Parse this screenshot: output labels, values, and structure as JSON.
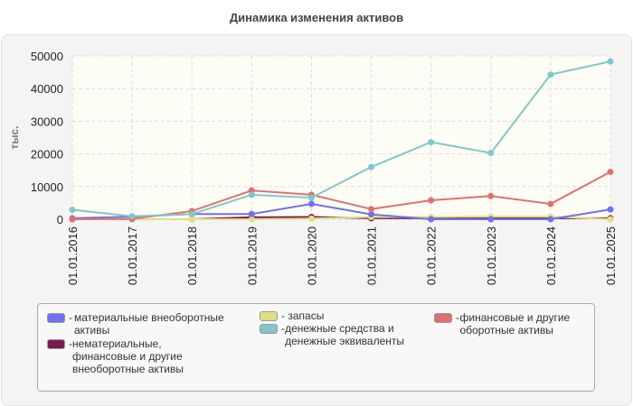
{
  "chart_data": {
    "type": "line",
    "title": "Динамика изменения активов",
    "ylabel": "тыс.",
    "xlabel": "",
    "ylim": [
      0,
      50000
    ],
    "yticks": [
      0,
      10000,
      20000,
      30000,
      40000,
      50000
    ],
    "grid": true,
    "legend_position": "bottom",
    "categories": [
      "01.01.2016",
      "01.01.2017",
      "01.01.2018",
      "01.01.2019",
      "01.01.2020",
      "01.01.2021",
      "01.01.2022",
      "01.01.2023",
      "01.01.2024",
      "01.01.2025"
    ],
    "series": [
      {
        "name": "материальные внеоборотные активы",
        "color": "#7070f0",
        "values": [
          300,
          800,
          1600,
          1600,
          4700,
          1500,
          0,
          0,
          0,
          3000
        ]
      },
      {
        "name": "нематериальные, финансовые и другие внеоборотные активы",
        "color": "#7a1a50",
        "values": [
          0,
          0,
          0,
          600,
          700,
          300,
          300,
          300,
          300,
          300
        ]
      },
      {
        "name": "запасы",
        "color": "#e0e080",
        "values": [
          0,
          0,
          0,
          0,
          200,
          700,
          700,
          800,
          800,
          0
        ]
      },
      {
        "name": "денежные средства и денежные эквиваленты",
        "color": "#80c8c8",
        "values": [
          2900,
          900,
          1600,
          7500,
          6600,
          16000,
          23600,
          20300,
          44300,
          48300
        ]
      },
      {
        "name": "финансовые и другие оборотные активы",
        "color": "#e07070",
        "values": [
          0,
          100,
          2500,
          8800,
          7500,
          3100,
          5800,
          7100,
          4700,
          14500
        ]
      }
    ]
  }
}
